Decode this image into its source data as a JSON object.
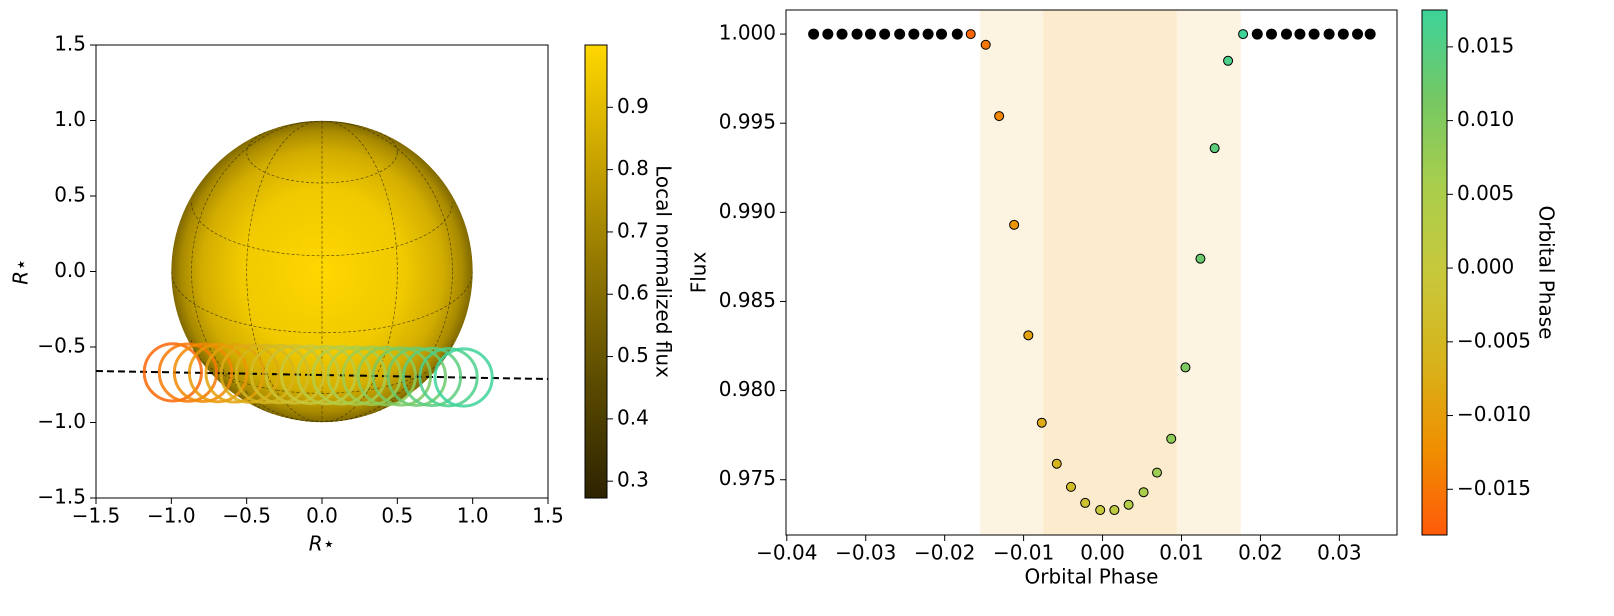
{
  "chart_data": [
    {
      "type": "geometry",
      "xlabel": "R⋆",
      "ylabel": "R⋆",
      "xlim": [
        -1.5,
        1.5
      ],
      "ylim": [
        -1.5,
        1.5
      ],
      "xticks": [
        {
          "value": -1.5,
          "label": "−1.5"
        },
        {
          "value": -1.0,
          "label": "−1.0"
        },
        {
          "value": -0.5,
          "label": "−0.5"
        },
        {
          "value": 0,
          "label": "0.0"
        },
        0.5,
        {
          "value": 1.0,
          "label": "1.0"
        },
        1.5
      ],
      "yticks": [
        {
          "value": -1.5,
          "label": "−1.5"
        },
        {
          "value": -1.0,
          "label": "−1.0"
        },
        {
          "value": -0.5,
          "label": "−0.5"
        },
        {
          "value": 0,
          "label": "0.0"
        },
        0.5,
        {
          "value": 1.0,
          "label": "1.0"
        },
        1.5
      ],
      "star": {
        "radius": 1
      },
      "trajectory": {
        "x": [
          -1.5,
          1.5
        ],
        "y": [
          -0.659,
          -0.712
        ],
        "color": "#000000"
      },
      "planets": {
        "x": [
          -0.99,
          -0.89,
          -0.79,
          -0.69,
          -0.58,
          -0.48,
          -0.38,
          -0.28,
          -0.18,
          -0.08,
          0.03,
          0.13,
          0.23,
          0.33,
          0.43,
          0.53,
          0.63,
          0.73,
          0.84,
          0.94
        ],
        "y": [
          -0.668,
          -0.67,
          -0.671,
          -0.673,
          -0.675,
          -0.677,
          -0.679,
          -0.68,
          -0.682,
          -0.684,
          -0.686,
          -0.688,
          -0.69,
          -0.691,
          -0.693,
          -0.695,
          -0.697,
          -0.698,
          -0.7,
          -0.702
        ],
        "radius": 0.19
      },
      "colorbar": {
        "label": "Local normalized flux",
        "lim": [
          0.273,
          1.0
        ],
        "ticks": [
          0.3,
          0.4,
          0.5,
          0.6,
          0.7,
          0.8,
          0.9
        ],
        "colormap": [
          "#2d2300",
          "#5a4a00",
          "#8f7500",
          "#c9a400",
          "#ffd700"
        ]
      }
    },
    {
      "type": "scatter",
      "xlabel": "Orbital Phase",
      "ylabel": "Flux",
      "xlim": [
        -0.0401,
        0.0373
      ],
      "ylim": [
        0.9719,
        1.00135
      ],
      "xticks": [
        {
          "value": -0.04,
          "label": "−0.04"
        },
        {
          "value": -0.03,
          "label": "−0.03"
        },
        {
          "value": -0.02,
          "label": "−0.02"
        },
        {
          "value": -0.01,
          "label": "−0.01"
        },
        {
          "value": 0,
          "label": "0.00"
        },
        0.01,
        0.02,
        0.03
      ],
      "yticks": [
        0.975,
        {
          "value": 0.98,
          "label": "0.980"
        },
        0.985,
        {
          "value": 0.99,
          "label": "0.990"
        },
        0.995,
        {
          "value": 1,
          "label": "1.000"
        }
      ],
      "shaded": [
        {
          "x0": -0.0155,
          "x1": 0.0175,
          "color": "#fdf3e1"
        },
        {
          "x0": -0.0075,
          "x1": 0.0094,
          "color": "#fdebcd"
        }
      ],
      "series": [
        {
          "color": "#000000",
          "x": [
            -0.0366,
            -0.0348,
            -0.033,
            -0.0311,
            -0.0294,
            -0.0276,
            -0.0257,
            -0.0239,
            -0.0221,
            -0.0204,
            -0.0184
          ],
          "y": [
            1,
            1,
            1,
            1,
            1,
            1,
            1,
            1,
            1,
            1,
            1
          ]
        },
        {
          "colormap": true,
          "x": [
            -0.0167,
            -0.0148,
            -0.0131,
            -0.0112,
            -0.0094,
            -0.0077,
            -0.0058,
            -0.004,
            -0.0022,
            -0.0003,
            0.0015,
            0.0033,
            0.0052,
            0.0069,
            0.0087,
            0.0105,
            0.0124,
            0.0142,
            0.0159,
            0.0178
          ],
          "y": [
            1.0,
            0.9994,
            0.9954,
            0.9893,
            0.9831,
            0.9782,
            0.9759,
            0.9746,
            0.9737,
            0.9733,
            0.9733,
            0.9736,
            0.9743,
            0.9754,
            0.9773,
            0.9813,
            0.9874,
            0.9936,
            0.9985,
            1.0
          ]
        },
        {
          "color": "#000000",
          "x": [
            0.0196,
            0.0214,
            0.0233,
            0.025,
            0.0268,
            0.0287,
            0.0305,
            0.0323,
            0.0339
          ],
          "y": [
            1,
            1,
            1,
            1,
            1,
            1,
            1,
            1,
            1
          ]
        }
      ],
      "colorbar": {
        "label": "Orbital Phase",
        "lim": [
          -0.0181,
          0.0175
        ],
        "ticks": [
          {
            "value": -0.015,
            "label": "−0.015"
          },
          {
            "value": -0.01,
            "label": "−0.010"
          },
          {
            "value": -0.005,
            "label": "−0.005"
          },
          {
            "value": 0,
            "label": "0.000"
          },
          0.005,
          {
            "value": 0.01,
            "label": "0.010"
          },
          0.015
        ],
        "colormap": [
          "#ff5a0a",
          "#ef9000",
          "#d6b41c",
          "#c8c83c",
          "#a8ce4c",
          "#74c864",
          "#3dd39a"
        ]
      }
    }
  ]
}
